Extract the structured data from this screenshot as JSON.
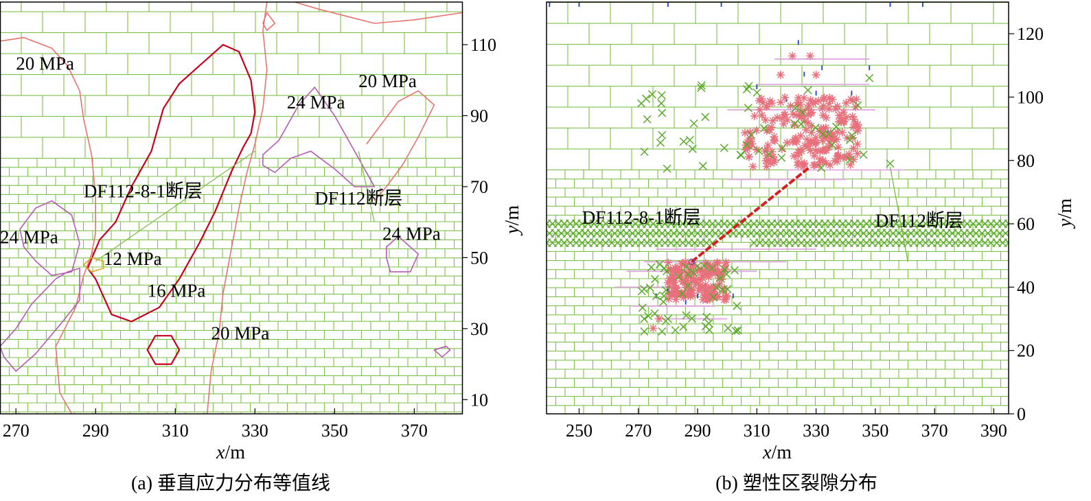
{
  "colors": {
    "brick": "#7fc04a",
    "contour_outer": "#e8736c",
    "contour_16": "#c8001e",
    "contour_24": "#b45ab4",
    "contour_12": "#e0a020",
    "fault": "#7fc04a",
    "fault_b": "#d42020",
    "shear": "#e8707c",
    "cross": "#5aaa2a",
    "tension": "#2040c0",
    "pink_line": "#e0a8e0"
  },
  "chart_data": [
    {
      "id": "a",
      "type": "contour",
      "caption": "(a)  垂直应力分布等值线",
      "xlabel": {
        "var": "x",
        "unit": "/m"
      },
      "ylabel": {
        "var": "y",
        "unit": "/m"
      },
      "xlim": [
        266,
        382
      ],
      "ylim": [
        6,
        122
      ],
      "xticks": [
        270,
        290,
        310,
        330,
        350,
        370
      ],
      "yticks": [
        10,
        30,
        50,
        70,
        90,
        110
      ],
      "y_axis_side": "right",
      "brick_boundary_y": 78,
      "contours": [
        {
          "level": "20 MPa",
          "color_key": "contour_outer",
          "closed": false,
          "points": [
            [
              266,
              111
            ],
            [
              272,
              112
            ],
            [
              279,
              109
            ],
            [
              283,
              104
            ],
            [
              286,
              97
            ],
            [
              287,
              89
            ],
            [
              289,
              79
            ],
            [
              290,
              67
            ],
            [
              290,
              57
            ],
            [
              289,
              51
            ],
            [
              287,
              45
            ],
            [
              285,
              36
            ],
            [
              280,
              25
            ],
            [
              281,
              12
            ],
            [
              284,
              6
            ]
          ]
        },
        {
          "level": "20 MPa",
          "color_key": "contour_outer",
          "closed": false,
          "points": [
            [
              318,
              6
            ],
            [
              319,
              18
            ],
            [
              321,
              29
            ],
            [
              322,
              40
            ],
            [
              324,
              52
            ],
            [
              326,
              64
            ],
            [
              328,
              74
            ],
            [
              330,
              82
            ],
            [
              332,
              92
            ],
            [
              333,
              103
            ],
            [
              332,
              114
            ],
            [
              333,
              122
            ]
          ]
        },
        {
          "level": "20 MPa",
          "color_key": "contour_outer",
          "closed": false,
          "points": [
            [
              340,
              122
            ],
            [
              346,
              120
            ],
            [
              353,
              118
            ],
            [
              360,
              116
            ],
            [
              370,
              117
            ],
            [
              382,
              119
            ]
          ]
        },
        {
          "level": "20 MPa",
          "color_key": "contour_outer",
          "closed": false,
          "points": [
            [
              332,
              116
            ],
            [
              333,
              119
            ],
            [
              335,
              116
            ],
            [
              333,
              114
            ],
            [
              332,
              116
            ]
          ]
        },
        {
          "level": "20 MPa",
          "color_key": "contour_outer",
          "closed": false,
          "points": [
            [
              358,
              82
            ],
            [
              362,
              88
            ],
            [
              366,
              94
            ],
            [
              371,
              97
            ],
            [
              375,
              93
            ],
            [
              371,
              84
            ],
            [
              367,
              76
            ],
            [
              363,
              70
            ],
            [
              360,
              66
            ]
          ]
        },
        {
          "level": "16 MPa",
          "color_key": "contour_16",
          "closed": true,
          "points": [
            [
              291,
              55
            ],
            [
              295,
              60
            ],
            [
              299,
              70
            ],
            [
              304,
              80
            ],
            [
              307,
              92
            ],
            [
              311,
              99
            ],
            [
              316,
              104
            ],
            [
              322,
              110
            ],
            [
              326,
              108
            ],
            [
              329,
              100
            ],
            [
              330,
              91
            ],
            [
              329,
              85
            ],
            [
              327,
              81
            ],
            [
              324,
              74
            ],
            [
              320,
              63
            ],
            [
              316,
              54
            ],
            [
              311,
              44
            ],
            [
              306,
              36
            ],
            [
              299,
              32
            ],
            [
              294,
              34
            ],
            [
              290,
              44
            ],
            [
              288,
              47
            ],
            [
              291,
              55
            ]
          ]
        },
        {
          "level": "16 MPa",
          "color_key": "contour_16",
          "closed": true,
          "points": [
            [
              303,
              24
            ],
            [
              305,
              28
            ],
            [
              309,
              28
            ],
            [
              311,
              24
            ],
            [
              309,
              20
            ],
            [
              305,
              20
            ],
            [
              303,
              24
            ]
          ]
        },
        {
          "level": "24 MPa",
          "color_key": "contour_24",
          "closed": true,
          "points": [
            [
              271,
              58
            ],
            [
              275,
              64
            ],
            [
              279,
              66
            ],
            [
              284,
              62
            ],
            [
              286,
              54
            ],
            [
              284,
              46
            ],
            [
              279,
              45
            ],
            [
              275,
              49
            ],
            [
              272,
              53
            ],
            [
              271,
              58
            ]
          ]
        },
        {
          "level": "24 MPa",
          "color_key": "contour_24",
          "closed": false,
          "points": [
            [
              266,
              25
            ],
            [
              270,
              30
            ],
            [
              274,
              37
            ],
            [
              280,
              44
            ],
            [
              283,
              46
            ],
            [
              286,
              47
            ],
            [
              286,
              38
            ],
            [
              281,
              31
            ],
            [
              275,
              23
            ],
            [
              270,
              18
            ],
            [
              267,
              22
            ],
            [
              266,
              25
            ]
          ]
        },
        {
          "level": "24 MPa",
          "color_key": "contour_24",
          "closed": true,
          "points": [
            [
              332,
              79
            ],
            [
              336,
              83
            ],
            [
              341,
              93
            ],
            [
              345,
              98
            ],
            [
              350,
              90
            ],
            [
              354,
              82
            ],
            [
              358,
              74
            ],
            [
              360,
              70
            ],
            [
              355,
              70
            ],
            [
              350,
              75
            ],
            [
              344,
              80
            ],
            [
              339,
              78
            ],
            [
              335,
              74
            ],
            [
              332,
              76
            ],
            [
              332,
              79
            ]
          ]
        },
        {
          "level": "24 MPa",
          "color_key": "contour_24",
          "closed": true,
          "points": [
            [
              363,
              53
            ],
            [
              366,
              56
            ],
            [
              371,
              51
            ],
            [
              369,
              46
            ],
            [
              364,
              46
            ],
            [
              363,
              50
            ],
            [
              363,
              53
            ]
          ]
        },
        {
          "level": "24 MPa",
          "color_key": "contour_24",
          "closed": true,
          "points": [
            [
              375,
              24
            ],
            [
              378,
              25
            ],
            [
              379,
              24
            ],
            [
              377,
              22
            ],
            [
              375,
              24
            ]
          ]
        },
        {
          "level": "12 MPa",
          "color_key": "contour_12",
          "closed": true,
          "points": [
            [
              287,
              48
            ],
            [
              289,
              50
            ],
            [
              292,
              49
            ],
            [
              292,
              47
            ],
            [
              289,
              46
            ],
            [
              287,
              48
            ]
          ]
        }
      ],
      "faults": [
        {
          "name": "DF112-8-1断层",
          "points": [
            [
              290,
              49
            ],
            [
              330,
              80
            ]
          ]
        },
        {
          "name": "DF112断层",
          "points": [
            [
              356,
              80
            ],
            [
              360,
              60
            ]
          ]
        }
      ],
      "annotations": [
        {
          "text": "20 MPa",
          "x": 270,
          "y": 103
        },
        {
          "text": "20 MPa",
          "x": 356,
          "y": 98
        },
        {
          "text": "24 MPa",
          "x": 338,
          "y": 92
        },
        {
          "text": "DF112-8-1断层",
          "x": 287,
          "y": 67
        },
        {
          "text": "DF112断层",
          "x": 345,
          "y": 65
        },
        {
          "text": "24 MPa",
          "x": 266,
          "y": 54
        },
        {
          "text": "24 MPa",
          "x": 362,
          "y": 55
        },
        {
          "text": "12 MPa",
          "x": 292,
          "y": 48
        },
        {
          "text": "16 MPa",
          "x": 303,
          "y": 39
        },
        {
          "text": "20 MPa",
          "x": 319,
          "y": 27
        }
      ]
    },
    {
      "id": "b",
      "type": "scatter",
      "caption": "(b)  塑性区裂隙分布",
      "xlabel": {
        "var": "x",
        "unit": "/m"
      },
      "ylabel": {
        "var": "y",
        "unit": "/m"
      },
      "xlim": [
        239,
        395
      ],
      "ylim": [
        0,
        130
      ],
      "xticks": [
        250,
        270,
        290,
        310,
        330,
        350,
        370,
        390
      ],
      "yticks": [
        0,
        20,
        40,
        60,
        80,
        100,
        120
      ],
      "y_axis_side": "right",
      "brick_boundary_y": 77,
      "faults": [
        {
          "name": "DF112-8-1断层",
          "color_key": "fault_b",
          "points": [
            [
              288,
              48
            ],
            [
              328,
              78
            ]
          ]
        },
        {
          "name": "DF112断层",
          "color_key": "fault",
          "points": [
            [
              355,
              78
            ],
            [
              361,
              48
            ]
          ]
        }
      ],
      "annotations": [
        {
          "text": "DF112-8-1断层",
          "x": 251,
          "y": 60
        },
        {
          "text": "DF112断层",
          "x": 350,
          "y": 59
        }
      ],
      "cross_band": {
        "y": [
          54,
          60
        ],
        "x": [
          239,
          395
        ],
        "gap": [
          296,
          308
        ]
      },
      "clusters": [
        {
          "marker": "asterisk",
          "color_key": "shear",
          "x": [
            322,
            345
          ],
          "y": [
            78,
            100
          ],
          "density": "dense"
        },
        {
          "marker": "asterisk",
          "color_key": "shear",
          "x": [
            306,
            322
          ],
          "y": [
            78,
            100
          ],
          "density": "medium"
        },
        {
          "marker": "asterisk",
          "color_key": "shear",
          "x": [
            280,
            300
          ],
          "y": [
            36,
            48
          ],
          "density": "dense"
        },
        {
          "marker": "cross",
          "color_key": "cross",
          "x": [
            270,
            348
          ],
          "y": [
            77,
            104
          ],
          "density": "sparse"
        },
        {
          "marker": "cross",
          "color_key": "cross",
          "x": [
            271,
            304
          ],
          "y": [
            26,
            48
          ],
          "density": "sparse"
        }
      ],
      "tension_ticks": {
        "x": [
          240,
          260,
          350,
          365
        ],
        "y": 130
      }
    }
  ]
}
